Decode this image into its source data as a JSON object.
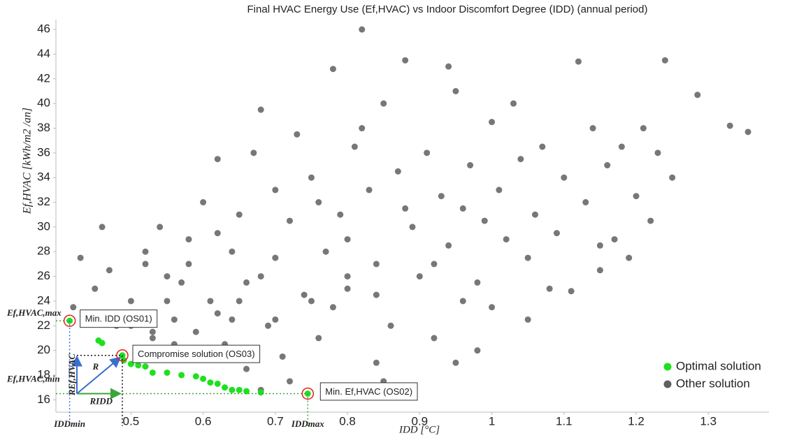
{
  "chart_data": {
    "type": "scatter",
    "title": "Final HVAC Energy Use (Ef,HVAC) vs Indoor Discomfort Degree (IDD) (annual period)",
    "x_label": "IDD [°C]",
    "y_label": "Ef,HVAC [kWh/m2 /an]",
    "xlim": [
      0.396,
      1.384
    ],
    "ylim": [
      15.0,
      46.8
    ],
    "xticks": [
      0.5,
      0.6,
      0.7,
      0.8,
      0.9,
      1,
      1.1,
      1.2,
      1.3
    ],
    "yticks": [
      16,
      18,
      20,
      22,
      24,
      26,
      28,
      30,
      32,
      34,
      36,
      38,
      40,
      42,
      44,
      46
    ],
    "legend": "lower right",
    "series": [
      {
        "name": "Other solution",
        "color": "#5f5f5f",
        "x": [
          0.42,
          0.43,
          0.45,
          0.47,
          0.48,
          0.5,
          0.52,
          0.53,
          0.55,
          0.46,
          0.51,
          0.54,
          0.56,
          0.57,
          0.58,
          0.59,
          0.6,
          0.52,
          0.55,
          0.58,
          0.61,
          0.62,
          0.63,
          0.64,
          0.65,
          0.66,
          0.67,
          0.68,
          0.69,
          0.7,
          0.62,
          0.64,
          0.66,
          0.68,
          0.7,
          0.71,
          0.72,
          0.73,
          0.74,
          0.75,
          0.76,
          0.77,
          0.78,
          0.79,
          0.8,
          0.81,
          0.82,
          0.83,
          0.84,
          0.85,
          0.76,
          0.78,
          0.8,
          0.82,
          0.84,
          0.86,
          0.87,
          0.88,
          0.89,
          0.9,
          0.91,
          0.92,
          0.93,
          0.94,
          0.95,
          0.96,
          0.97,
          0.98,
          0.99,
          1.0,
          0.92,
          0.94,
          0.96,
          0.98,
          1.0,
          1.01,
          1.02,
          1.03,
          1.04,
          1.05,
          1.06,
          1.07,
          1.08,
          1.09,
          1.1,
          1.11,
          1.12,
          1.13,
          1.14,
          1.15,
          1.16,
          1.17,
          1.18,
          1.19,
          1.2,
          1.21,
          1.22,
          1.23,
          1.24,
          1.25,
          1.285,
          1.33,
          1.355,
          0.72,
          0.85,
          0.95,
          1.05,
          1.15,
          0.68,
          0.88,
          0.5,
          0.53,
          0.56,
          0.59,
          0.62,
          0.65,
          0.7,
          0.75,
          0.8,
          0.84
        ],
        "values": [
          23.5,
          27.5,
          25,
          26.5,
          22,
          24,
          28,
          21.5,
          26,
          30,
          20,
          30,
          22.5,
          25.5,
          29,
          19.5,
          32,
          27,
          24,
          27,
          24,
          35.5,
          20.5,
          28,
          31,
          18.5,
          36,
          26,
          22,
          33,
          29.5,
          22.5,
          25.5,
          39.5,
          27.5,
          19.5,
          30.5,
          37.5,
          24.5,
          34,
          21,
          28,
          42.8,
          31,
          25,
          36.5,
          46,
          33,
          19,
          40,
          32,
          23.5,
          29,
          38,
          27,
          22,
          34.5,
          43.5,
          30,
          26,
          36,
          21,
          32.5,
          28.5,
          41,
          24,
          35,
          20,
          30.5,
          38.5,
          27,
          43,
          31.5,
          25.5,
          23.5,
          33,
          29,
          40,
          35.5,
          27.5,
          31,
          36.5,
          25,
          29.5,
          34,
          24.8,
          43.4,
          32,
          38,
          28.5,
          35,
          29,
          36.5,
          27.5,
          32.5,
          38,
          30.5,
          36,
          43.5,
          34,
          40.7,
          38.2,
          37.7,
          17.5,
          17.5,
          19,
          22.5,
          26.5,
          16.8,
          31.5,
          22,
          21,
          20.5,
          21.5,
          23,
          24,
          22.5,
          24,
          26,
          24.5
        ]
      },
      {
        "name": "Optimal solution",
        "color": "#1fe01f",
        "x": [
          0.415,
          0.455,
          0.46,
          0.488,
          0.49,
          0.5,
          0.51,
          0.52,
          0.53,
          0.55,
          0.57,
          0.59,
          0.6,
          0.61,
          0.62,
          0.63,
          0.64,
          0.65,
          0.66,
          0.68,
          0.745
        ],
        "values": [
          22.4,
          20.8,
          20.6,
          19.6,
          19.2,
          18.9,
          18.8,
          18.7,
          18.2,
          18.2,
          18.0,
          17.9,
          17.7,
          17.4,
          17.3,
          17.0,
          16.8,
          16.8,
          16.7,
          16.6,
          16.5
        ]
      }
    ],
    "annotations": {
      "os01": "Min. IDD (OS01)",
      "os03": "Compromise solution (OS03)",
      "os02": "Min. Ef,HVAC (OS02)",
      "e_max": "Ef,HVAC,max",
      "e_min": "Ef,HVAC,min",
      "idd_min": "IDDmin",
      "idd_max": "IDDmax",
      "r": "R",
      "r_e": "REf,HVAC",
      "r_idd": "RIDD"
    }
  }
}
